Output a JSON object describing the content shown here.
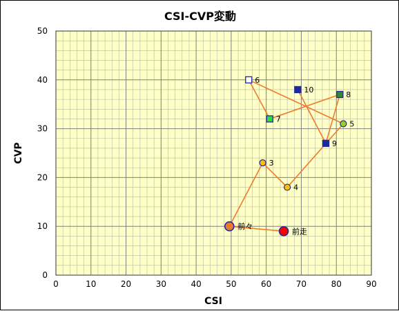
{
  "chart_data": {
    "type": "scatter",
    "title": "CSI-CVP変動",
    "xlabel": "CSI",
    "ylabel": "CVP",
    "xlim": [
      0,
      90
    ],
    "ylim": [
      0,
      50
    ],
    "xticks": [
      0,
      10,
      20,
      30,
      40,
      50,
      60,
      70,
      80,
      90
    ],
    "yticks": [
      0,
      10,
      20,
      30,
      40,
      50
    ],
    "grid": true,
    "legend": "none",
    "colors": {
      "plot_background": "#ffffc8",
      "grid_line": "#7f7f7f",
      "connector_line": "#f07a2c",
      "label_text": "#000000"
    },
    "points": [
      {
        "label": "前走",
        "x": 65,
        "y": 9,
        "marker": "circle",
        "fill": "#ff0000",
        "stroke": "#1f2a9a"
      },
      {
        "label": "前々",
        "x": 49.5,
        "y": 10,
        "marker": "circle",
        "fill": "#f07a2c",
        "stroke": "#1f2a9a"
      },
      {
        "label": "3",
        "x": 59,
        "y": 23,
        "marker": "circle",
        "fill": "#ffc000",
        "stroke": "#1f2a9a"
      },
      {
        "label": "4",
        "x": 66,
        "y": 18,
        "marker": "circle",
        "fill": "#ffc000",
        "stroke": "#1f2a9a"
      },
      {
        "label": "5",
        "x": 82,
        "y": 31,
        "marker": "circle",
        "fill": "#9acd32",
        "stroke": "#1f2a9a"
      },
      {
        "label": "6",
        "x": 55,
        "y": 40,
        "marker": "square",
        "fill": "#ffffff",
        "stroke": "#1f2a9a"
      },
      {
        "label": "7",
        "x": 61,
        "y": 32,
        "marker": "square",
        "fill": "#33dd33",
        "stroke": "#1f2a9a"
      },
      {
        "label": "8",
        "x": 81,
        "y": 37,
        "marker": "square",
        "fill": "#2e8b2e",
        "stroke": "#1f2a9a"
      },
      {
        "label": "9",
        "x": 77,
        "y": 27,
        "marker": "square",
        "fill": "#1f2a9a",
        "stroke": "#1f2a9a"
      },
      {
        "label": "10",
        "x": 69,
        "y": 38,
        "marker": "square",
        "fill": "#1f2a9a",
        "stroke": "#1f2a9a"
      }
    ]
  }
}
